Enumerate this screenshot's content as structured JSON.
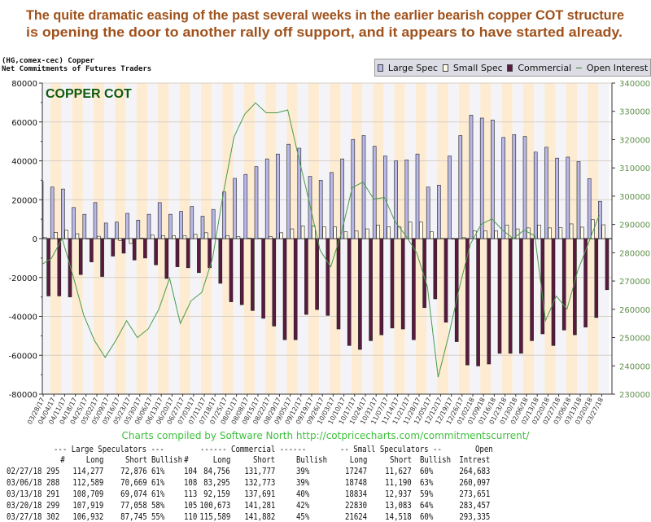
{
  "headline": {
    "line1": "The quite dramatic easing of the past several weeks in the earlier bearish copper COT structure",
    "line2": "is opening the door to another rally off support, and it appears to have started already.",
    "color": "#a0521c"
  },
  "header": {
    "line1": "(HG,comex-cec) Copper",
    "line2": "Net Commitments of Futures Traders"
  },
  "legend": {
    "large_spec": "Large Spec",
    "small_spec": "Small Spec",
    "commercial": "Commercial",
    "open_interest": "Open Interest"
  },
  "credit": "Charts compiled by Software North  http://cotpricecharts.com/commitmentscurrent/",
  "chart_data": {
    "type": "bar",
    "title": "COPPER COT",
    "left_axis": {
      "ylim": [
        -80000,
        80000
      ],
      "ticks": [
        "80000",
        "60000",
        "40000",
        "20000",
        "0",
        "-20000",
        "-40000",
        "-60000",
        "-80000"
      ]
    },
    "right_axis": {
      "ylim": [
        230000,
        340000
      ],
      "ticks": [
        "340000",
        "330000",
        "320000",
        "310000",
        "300000",
        "290000",
        "280000",
        "270000",
        "260000",
        "250000",
        "240000",
        "230000"
      ]
    },
    "grid": true,
    "legend_position": "top-right",
    "colors": {
      "large_spec": "#b8b8e8",
      "small_spec": "#fffbe6",
      "commercial": "#5a1a40",
      "open_interest": "#4a9a4a",
      "stripe_a": "#f4f4f8",
      "stripe_b": "#fdebd2"
    },
    "categories": [
      "03/28/17",
      "04/04/17",
      "04/11/17",
      "04/18/17",
      "04/25/17",
      "05/02/17",
      "05/09/17",
      "05/16/17",
      "05/23/17",
      "05/30/17",
      "06/06/17",
      "06/13/17",
      "06/20/17",
      "06/27/17",
      "07/03/17",
      "07/11/17",
      "07/18/17",
      "07/25/17",
      "08/01/17",
      "08/08/17",
      "08/15/17",
      "08/22/17",
      "08/29/17",
      "09/05/17",
      "09/12/17",
      "09/19/17",
      "09/26/17",
      "10/03/17",
      "10/10/17",
      "10/17/17",
      "10/24/17",
      "10/31/17",
      "11/07/17",
      "11/14/17",
      "11/21/17",
      "11/28/17",
      "12/05/17",
      "12/12/17",
      "12/19/17",
      "12/26/17",
      "01/02/18",
      "01/09/18",
      "01/16/18",
      "01/23/18",
      "01/30/18",
      "02/06/18",
      "02/13/18",
      "02/20/18",
      "02/27/18",
      "03/06/18",
      "03/13/18",
      "03/20/18",
      "03/27/18"
    ],
    "series": [
      {
        "name": "Large Spec",
        "axis": "left",
        "values": [
          29500,
          26500,
          25500,
          16000,
          12500,
          18500,
          8000,
          8500,
          13000,
          9500,
          12500,
          18500,
          12500,
          14000,
          16500,
          11500,
          15000,
          24000,
          31000,
          33000,
          37000,
          41000,
          43500,
          48500,
          46500,
          32000,
          30000,
          34000,
          41000,
          51000,
          53000,
          47500,
          42500,
          40000,
          40500,
          43500,
          26500,
          27500,
          42500,
          53000,
          63500,
          62000,
          61000,
          52000,
          53500,
          52500,
          44500,
          47000,
          41401,
          41920,
          39635,
          30861,
          19187
        ]
      },
      {
        "name": "Small Spec",
        "axis": "left",
        "values": [
          500,
          3200,
          4300,
          2500,
          -200,
          1200,
          200,
          -1000,
          -2500,
          300,
          1800,
          1500,
          1500,
          1500,
          2200,
          3000,
          -300,
          1500,
          1000,
          300,
          200,
          1000,
          3000,
          5000,
          6500,
          6500,
          6000,
          6000,
          3500,
          4000,
          5000,
          7000,
          6000,
          6000,
          8500,
          8500,
          3500,
          100,
          -300,
          500,
          4000,
          4000,
          4000,
          7000,
          5000,
          5500,
          7000,
          5500,
          5620,
          7558,
          5897,
          9747,
          7106
        ]
      },
      {
        "name": "Commercial",
        "axis": "left",
        "values": [
          -29500,
          -29500,
          -30000,
          -18500,
          -12000,
          -19500,
          -9000,
          -7500,
          -11000,
          -10000,
          -13500,
          -20500,
          -14500,
          -15000,
          -17500,
          -15000,
          -23000,
          -32500,
          -34000,
          -37000,
          -41000,
          -45000,
          -52000,
          -52000,
          -39000,
          -36500,
          -39500,
          -46500,
          -55000,
          -57000,
          -52500,
          -49500,
          -46000,
          -46500,
          -52000,
          -35500,
          -31000,
          -43000,
          -53000,
          -65000,
          -65500,
          -64500,
          -59000,
          -59000,
          -59000,
          -52500,
          -49000,
          -55000,
          -47021,
          -49478,
          -45532,
          -40608,
          -26293
        ]
      },
      {
        "name": "Open Interest",
        "axis": "right",
        "type": "line",
        "values": [
          276000,
          278000,
          285000,
          272000,
          258000,
          249000,
          243000,
          249000,
          256000,
          250000,
          253000,
          260000,
          271000,
          255000,
          263000,
          266000,
          278000,
          301000,
          321000,
          329000,
          333000,
          329500,
          329500,
          330500,
          314000,
          298000,
          281000,
          275000,
          287000,
          303000,
          305000,
          299000,
          299500,
          291000,
          286000,
          280000,
          268000,
          236000,
          251000,
          268000,
          283000,
          290000,
          292000,
          288000,
          285000,
          288000,
          286000,
          256000,
          264683,
          260097,
          273651,
          283457,
          293335
        ]
      }
    ]
  },
  "table": {
    "group_headers": [
      "--- Large Speculators ---",
      "------ Commercial ------",
      "-- Small Speculators --",
      "Open"
    ],
    "columns": [
      "#",
      "Long",
      "Short",
      "Bullish",
      "#",
      "Long",
      "Short",
      "Bullish",
      "Long",
      "Short",
      "Bullish",
      "Intrest"
    ],
    "rows": [
      [
        "02/27/18",
        "295",
        "114,277",
        "72,876",
        "61%",
        "104",
        "84,756",
        "131,777",
        "39%",
        "17247",
        "11,627",
        "60%",
        "264,683"
      ],
      [
        "03/06/18",
        "288",
        "112,589",
        "70,669",
        "61%",
        "108",
        "83,295",
        "132,773",
        "39%",
        "18748",
        "11,190",
        "63%",
        "260,097"
      ],
      [
        "03/13/18",
        "291",
        "108,709",
        "69,074",
        "61%",
        "113",
        "92,159",
        "137,691",
        "40%",
        "18834",
        "12,937",
        "59%",
        "273,651"
      ],
      [
        "03/20/18",
        "299",
        "107,919",
        "77,058",
        "58%",
        "105",
        "100,673",
        "141,281",
        "42%",
        "22830",
        "13,083",
        "64%",
        "283,457"
      ],
      [
        "03/27/18",
        "302",
        "106,932",
        "87,745",
        "55%",
        "110",
        "115,589",
        "141,882",
        "45%",
        "21624",
        "14,518",
        "60%",
        "293,335"
      ]
    ]
  }
}
